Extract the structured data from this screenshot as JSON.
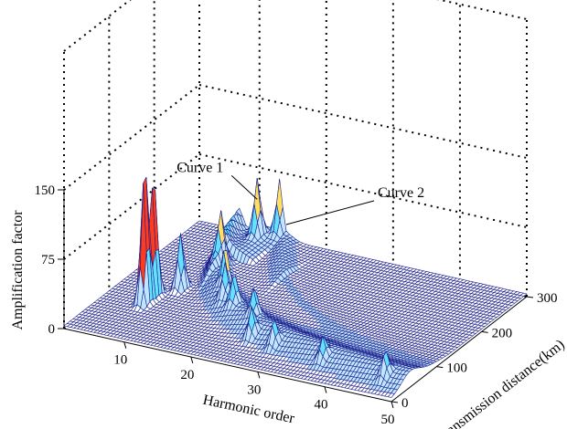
{
  "chart_data": {
    "type": "surface",
    "title": "",
    "xlabel": "Harmonic order",
    "ylabel": "Transmission distance(km)",
    "zlabel": "Amplification factor",
    "xlim": [
      1,
      50
    ],
    "ylim": [
      0,
      300
    ],
    "zlim": [
      0,
      150
    ],
    "x_ticks": [
      10,
      20,
      30,
      40,
      50
    ],
    "y_ticks": [
      0,
      100,
      200,
      300
    ],
    "z_ticks": [
      0,
      75,
      150
    ],
    "grid": true,
    "colormap": "jet",
    "annotations": [
      {
        "text": "Curve 1",
        "at": {
          "harmonic": 11,
          "distance": 280,
          "amplification": 50
        }
      },
      {
        "text": "Curve 2",
        "at": {
          "harmonic": 14,
          "distance": 300,
          "amplification": 20
        }
      }
    ],
    "resonance_peaks": [
      {
        "harmonic": 7,
        "distance": 90,
        "amplification": 150
      },
      {
        "harmonic": 7,
        "distance": 110,
        "amplification": 130
      },
      {
        "harmonic": 9,
        "distance": 140,
        "amplification": 60
      },
      {
        "harmonic": 11,
        "distance": 200,
        "amplification": 45
      },
      {
        "harmonic": 11,
        "distance": 280,
        "amplification": 60
      },
      {
        "harmonic": 13,
        "distance": 300,
        "amplification": 55
      },
      {
        "harmonic": 15,
        "distance": 150,
        "amplification": 40
      },
      {
        "harmonic": 17,
        "distance": 120,
        "amplification": 35
      },
      {
        "harmonic": 19,
        "distance": 110,
        "amplification": 30
      },
      {
        "harmonic": 23,
        "distance": 95,
        "amplification": 28
      },
      {
        "harmonic": 25,
        "distance": 60,
        "amplification": 30
      },
      {
        "harmonic": 29,
        "distance": 50,
        "amplification": 25
      },
      {
        "harmonic": 37,
        "distance": 40,
        "amplification": 22
      },
      {
        "harmonic": 47,
        "distance": 30,
        "amplification": 25
      }
    ]
  }
}
